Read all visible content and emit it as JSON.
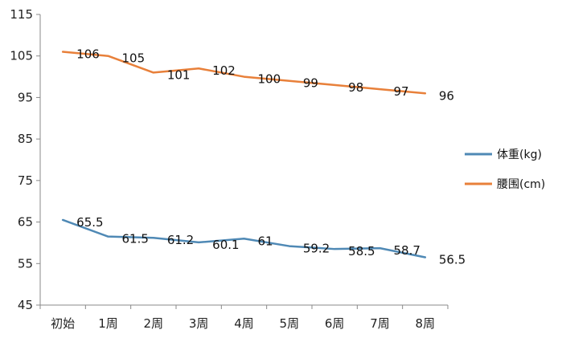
{
  "chart_data": {
    "type": "line",
    "title": "",
    "xlabel": "",
    "ylabel": "",
    "ylim": [
      45,
      115
    ],
    "yticks": [
      45,
      55,
      65,
      75,
      85,
      95,
      105,
      115
    ],
    "categories": [
      "初始",
      "1周",
      "2周",
      "3周",
      "4周",
      "5周",
      "6周",
      "7周",
      "8周"
    ],
    "legend_position": "right",
    "series": [
      {
        "name": "体重(kg)",
        "color": "#4f89b5",
        "values": [
          65.5,
          61.5,
          61.2,
          60.1,
          61,
          59.2,
          58.5,
          58.7,
          56.5
        ],
        "labels": [
          "65.5",
          "61.5",
          "61.2",
          "60.1",
          "61",
          "59.2",
          "58.5",
          "58.7",
          "56.5"
        ]
      },
      {
        "name": "腰围(cm)",
        "color": "#e8803a",
        "values": [
          106,
          105,
          101,
          102,
          100,
          99,
          98,
          97,
          96
        ],
        "labels": [
          "106",
          "105",
          "101",
          "102",
          "100",
          "99",
          "98",
          "97",
          "96"
        ]
      }
    ]
  }
}
